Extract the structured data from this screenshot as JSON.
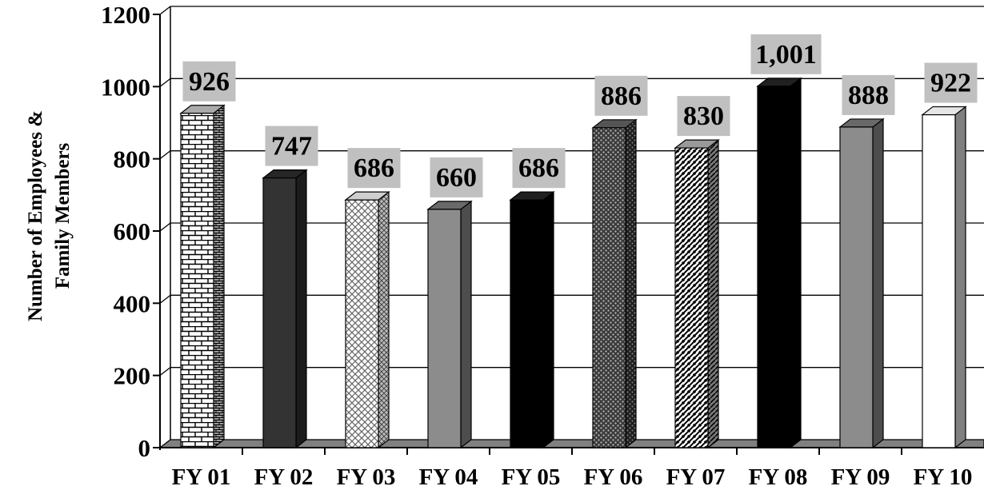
{
  "chart_data": {
    "type": "bar",
    "title": "",
    "xlabel": "",
    "ylabel": "Number of Employees & Family Members",
    "categories": [
      "FY 01",
      "FY 02",
      "FY 03",
      "FY 04",
      "FY 05",
      "FY 06",
      "FY 07",
      "FY 08",
      "FY 09",
      "FY 10"
    ],
    "values": [
      926,
      747,
      686,
      660,
      686,
      886,
      830,
      1001,
      888,
      922
    ],
    "data_labels": [
      "926",
      "747",
      "686",
      "660",
      "686",
      "886",
      "830",
      "1,001",
      "888",
      "922"
    ],
    "ylim": [
      0,
      1200
    ],
    "yticks": [
      "0",
      "200",
      "400",
      "600",
      "800",
      "1000",
      "1200"
    ],
    "grid": true,
    "style": "3d-bars-patterned",
    "bar_fills": [
      "bricks",
      "#333333",
      "crosshatch-light",
      "#8c8c8c",
      "#000000",
      "dots-dark",
      "diagonal-stripes",
      "#000000",
      "#8c8c8c",
      "#ffffff"
    ],
    "label_box_color": "#c0c0c0"
  }
}
